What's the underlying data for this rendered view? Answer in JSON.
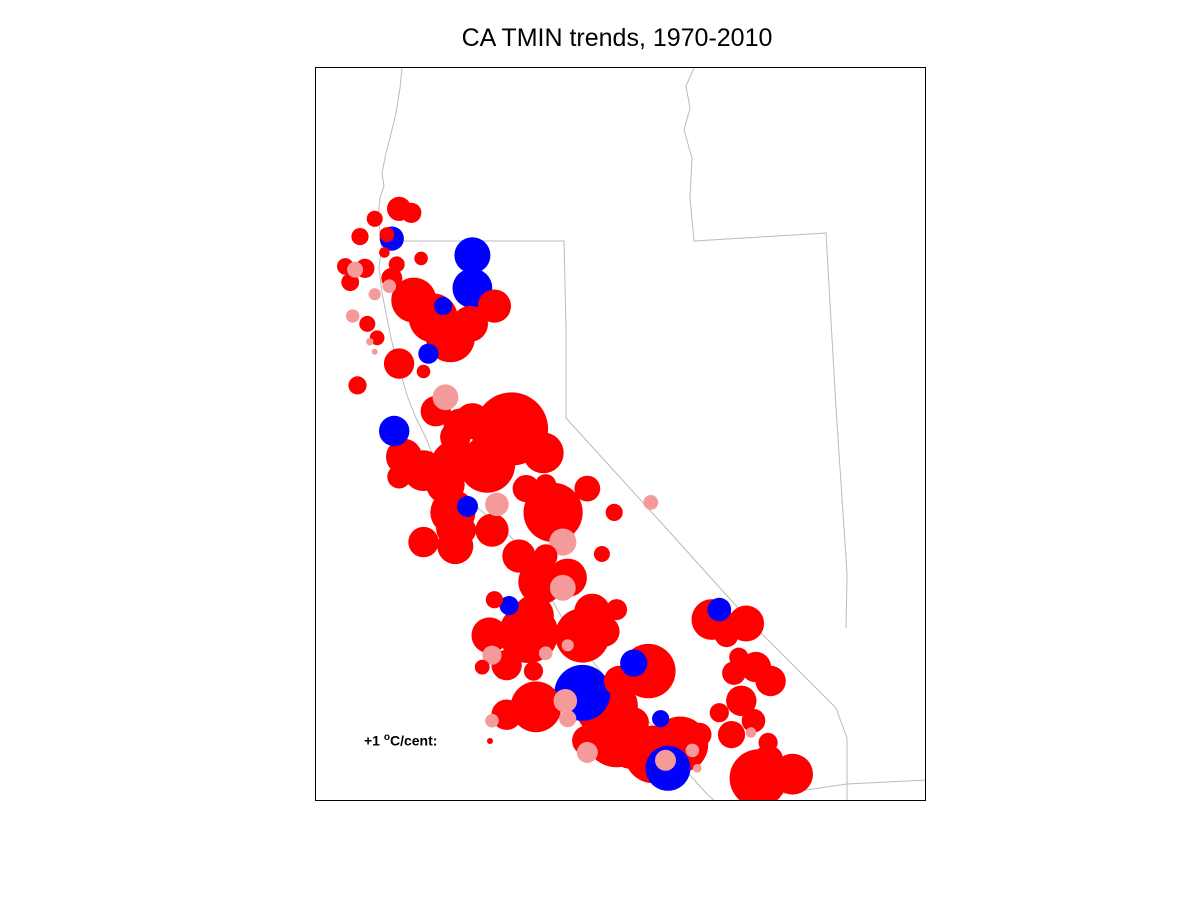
{
  "title": "CA TMIN trends, 1970-2010",
  "legend": {
    "prefix": "+1 ",
    "degree": "o",
    "suffix": "C/cent:",
    "dot_color": "#ff0000"
  },
  "colors": {
    "warming_significant": "#ff0000",
    "warming_insignificant": "#f59a9a",
    "cooling_significant": "#0000ff",
    "cooling_insignificant": "#9a9af5",
    "boundary": "#bbbbbb",
    "frame": "#000000"
  },
  "stations": [
    {
      "lon": -123.3,
      "lat": 41.95,
      "trend": 1.6,
      "sig": true
    },
    {
      "lon": -123.8,
      "lat": 41.7,
      "trend": 0.7,
      "sig": true
    },
    {
      "lon": -124.1,
      "lat": 41.25,
      "trend": 0.8,
      "sig": true
    },
    {
      "lon": -123.55,
      "lat": 41.3,
      "trend": 0.6,
      "sig": true
    },
    {
      "lon": -123.45,
      "lat": 41.2,
      "trend": -1.6,
      "sig": true
    },
    {
      "lon": -123.05,
      "lat": 41.85,
      "trend": 1.1,
      "sig": true
    },
    {
      "lon": -124.4,
      "lat": 40.5,
      "trend": 0.75,
      "sig": true
    },
    {
      "lon": -124.0,
      "lat": 40.45,
      "trend": 1.0,
      "sig": true
    },
    {
      "lon": -124.3,
      "lat": 40.1,
      "trend": 0.85,
      "sig": true
    },
    {
      "lon": -124.2,
      "lat": 40.42,
      "trend": 0.7,
      "sig": false
    },
    {
      "lon": -123.45,
      "lat": 40.2,
      "trend": 1.2,
      "sig": true
    },
    {
      "lon": -123.35,
      "lat": 40.55,
      "trend": 0.7,
      "sig": true
    },
    {
      "lon": -123.6,
      "lat": 40.85,
      "trend": 0.3,
      "sig": true
    },
    {
      "lon": -122.85,
      "lat": 40.7,
      "trend": 0.5,
      "sig": true
    },
    {
      "lon": -121.8,
      "lat": 40.78,
      "trend": -3.5,
      "sig": true
    },
    {
      "lon": -121.8,
      "lat": 39.95,
      "trend": -4.3,
      "sig": true
    },
    {
      "lon": -122.4,
      "lat": 39.5,
      "trend": -0.9,
      "sig": true
    },
    {
      "lon": -121.35,
      "lat": 39.5,
      "trend": 3.0,
      "sig": true
    },
    {
      "lon": -121.85,
      "lat": 39.05,
      "trend": 3.5,
      "sig": true
    },
    {
      "lon": -122.6,
      "lat": 39.2,
      "trend": 6.5,
      "sig": true
    },
    {
      "lon": -123.0,
      "lat": 39.65,
      "trend": 5.5,
      "sig": true
    },
    {
      "lon": -122.25,
      "lat": 38.7,
      "trend": 6.5,
      "sig": true
    },
    {
      "lon": -122.7,
      "lat": 38.3,
      "trend": -1.1,
      "sig": true
    },
    {
      "lon": -122.8,
      "lat": 37.85,
      "trend": 0.5,
      "sig": true
    },
    {
      "lon": -123.5,
      "lat": 40.0,
      "trend": 0.5,
      "sig": false
    },
    {
      "lon": -123.8,
      "lat": 39.8,
      "trend": 0.4,
      "sig": false
    },
    {
      "lon": -124.25,
      "lat": 39.25,
      "trend": 0.5,
      "sig": false
    },
    {
      "lon": -123.95,
      "lat": 39.05,
      "trend": 0.7,
      "sig": true
    },
    {
      "lon": -123.75,
      "lat": 38.7,
      "trend": 0.6,
      "sig": true
    },
    {
      "lon": -123.3,
      "lat": 38.05,
      "trend": 2.5,
      "sig": true
    },
    {
      "lon": -124.15,
      "lat": 37.5,
      "trend": 0.9,
      "sig": true
    },
    {
      "lon": -123.8,
      "lat": 38.35,
      "trend": 0.1,
      "sig": false
    },
    {
      "lon": -123.9,
      "lat": 38.6,
      "trend": 0.15,
      "sig": false
    },
    {
      "lon": -123.4,
      "lat": 36.35,
      "trend": -2.5,
      "sig": true
    },
    {
      "lon": -122.35,
      "lat": 37.2,
      "trend": 1.8,
      "sig": false
    },
    {
      "lon": -122.55,
      "lat": 36.85,
      "trend": 2.5,
      "sig": true
    },
    {
      "lon": -121.0,
      "lat": 36.4,
      "trend": 14.5,
      "sig": true
    },
    {
      "lon": -120.35,
      "lat": 35.8,
      "trend": 4.5,
      "sig": true
    },
    {
      "lon": -121.35,
      "lat": 36.0,
      "trend": 5.5,
      "sig": true
    },
    {
      "lon": -122.05,
      "lat": 36.5,
      "trend": 3.0,
      "sig": true
    },
    {
      "lon": -121.8,
      "lat": 36.6,
      "trend": 3.5,
      "sig": true
    },
    {
      "lon": -122.15,
      "lat": 36.2,
      "trend": 2.5,
      "sig": true
    },
    {
      "lon": -121.5,
      "lat": 35.5,
      "trend": 8.5,
      "sig": true
    },
    {
      "lon": -122.2,
      "lat": 35.55,
      "trend": 5.0,
      "sig": true
    },
    {
      "lon": -122.8,
      "lat": 35.35,
      "trend": 4.5,
      "sig": true
    },
    {
      "lon": -123.2,
      "lat": 35.7,
      "trend": 3.5,
      "sig": true
    },
    {
      "lon": -123.3,
      "lat": 35.2,
      "trend": 1.5,
      "sig": true
    },
    {
      "lon": -122.35,
      "lat": 35.0,
      "trend": 4.0,
      "sig": true
    },
    {
      "lon": -121.9,
      "lat": 34.45,
      "trend": -1.2,
      "sig": true
    },
    {
      "lon": -121.3,
      "lat": 34.5,
      "trend": 1.5,
      "sig": false
    },
    {
      "lon": -122.2,
      "lat": 34.3,
      "trend": 5.5,
      "sig": true
    },
    {
      "lon": -121.4,
      "lat": 33.85,
      "trend": 3.0,
      "sig": true
    },
    {
      "lon": -122.0,
      "lat": 33.85,
      "trend": 2.0,
      "sig": true
    },
    {
      "lon": -122.8,
      "lat": 33.55,
      "trend": 2.5,
      "sig": true
    },
    {
      "lon": -122.15,
      "lat": 33.45,
      "trend": 3.5,
      "sig": true
    },
    {
      "lon": -122.15,
      "lat": 33.9,
      "trend": 4.0,
      "sig": true
    },
    {
      "lon": -120.3,
      "lat": 35.0,
      "trend": 1.2,
      "sig": true
    },
    {
      "lon": -120.7,
      "lat": 34.9,
      "trend": 2.0,
      "sig": true
    },
    {
      "lon": -120.15,
      "lat": 34.3,
      "trend": 9.5,
      "sig": true
    },
    {
      "lon": -119.45,
      "lat": 34.9,
      "trend": 1.8,
      "sig": true
    },
    {
      "lon": -118.9,
      "lat": 34.3,
      "trend": 0.8,
      "sig": true
    },
    {
      "lon": -118.15,
      "lat": 34.55,
      "trend": 0.6,
      "sig": false
    },
    {
      "lon": -119.95,
      "lat": 33.55,
      "trend": 2.0,
      "sig": false
    },
    {
      "lon": -120.85,
      "lat": 33.2,
      "trend": 3.0,
      "sig": true
    },
    {
      "lon": -120.3,
      "lat": 33.2,
      "trend": 1.5,
      "sig": true
    },
    {
      "lon": -119.15,
      "lat": 33.25,
      "trend": 0.7,
      "sig": true
    },
    {
      "lon": -120.4,
      "lat": 32.55,
      "trend": 5.5,
      "sig": true
    },
    {
      "lon": -119.85,
      "lat": 32.65,
      "trend": 4.0,
      "sig": true
    },
    {
      "lon": -119.95,
      "lat": 32.4,
      "trend": 1.8,
      "sig": false
    },
    {
      "lon": -121.35,
      "lat": 32.1,
      "trend": 0.8,
      "sig": true
    },
    {
      "lon": -121.05,
      "lat": 31.95,
      "trend": -1.0,
      "sig": true
    },
    {
      "lon": -120.55,
      "lat": 31.7,
      "trend": 4.5,
      "sig": true
    },
    {
      "lon": -120.65,
      "lat": 31.25,
      "trend": 9.5,
      "sig": true
    },
    {
      "lon": -119.55,
      "lat": 31.2,
      "trend": 8.0,
      "sig": true
    },
    {
      "lon": -119.1,
      "lat": 31.3,
      "trend": 2.5,
      "sig": true
    },
    {
      "lon": -119.35,
      "lat": 31.8,
      "trend": 3.5,
      "sig": true
    },
    {
      "lon": -118.85,
      "lat": 31.85,
      "trend": 1.2,
      "sig": true
    },
    {
      "lon": -121.45,
      "lat": 31.2,
      "trend": 3.5,
      "sig": true
    },
    {
      "lon": -121.4,
      "lat": 30.7,
      "trend": 1.0,
      "sig": false
    },
    {
      "lon": -121.6,
      "lat": 30.4,
      "trend": 0.6,
      "sig": true
    },
    {
      "lon": -121.1,
      "lat": 30.45,
      "trend": 2.5,
      "sig": true
    },
    {
      "lon": -120.55,
      "lat": 30.3,
      "trend": 1.0,
      "sig": true
    },
    {
      "lon": -120.3,
      "lat": 30.75,
      "trend": 0.5,
      "sig": false
    },
    {
      "lon": -119.85,
      "lat": 30.95,
      "trend": 0.4,
      "sig": false
    },
    {
      "lon": -118.5,
      "lat": 30.5,
      "trend": -2.0,
      "sig": true
    },
    {
      "lon": -118.2,
      "lat": 30.3,
      "trend": 8.0,
      "sig": true
    },
    {
      "lon": -118.8,
      "lat": 30.05,
      "trend": 2.5,
      "sig": true
    },
    {
      "lon": -119.55,
      "lat": 29.75,
      "trend": -8.5,
      "sig": true
    },
    {
      "lon": -119.9,
      "lat": 29.55,
      "trend": 1.5,
      "sig": false
    },
    {
      "lon": -120.5,
      "lat": 29.4,
      "trend": 7.0,
      "sig": true
    },
    {
      "lon": -121.1,
      "lat": 29.2,
      "trend": 2.5,
      "sig": true
    },
    {
      "lon": -121.4,
      "lat": 29.05,
      "trend": 0.5,
      "sig": false
    },
    {
      "lon": -119.85,
      "lat": 29.1,
      "trend": 0.8,
      "sig": false
    },
    {
      "lon": -119.05,
      "lat": 29.4,
      "trend": 10.5,
      "sig": true
    },
    {
      "lon": -118.5,
      "lat": 29.0,
      "trend": 2.5,
      "sig": true
    },
    {
      "lon": -117.95,
      "lat": 29.1,
      "trend": -0.8,
      "sig": true
    },
    {
      "lon": -118.85,
      "lat": 28.7,
      "trend": 11.5,
      "sig": true
    },
    {
      "lon": -118.55,
      "lat": 28.4,
      "trend": 5.5,
      "sig": true
    },
    {
      "lon": -119.45,
      "lat": 28.55,
      "trend": 2.5,
      "sig": true
    },
    {
      "lon": -119.45,
      "lat": 28.25,
      "trend": 1.2,
      "sig": false
    },
    {
      "lon": -118.1,
      "lat": 28.2,
      "trend": 9.0,
      "sig": true
    },
    {
      "lon": -117.55,
      "lat": 28.45,
      "trend": 8.5,
      "sig": true
    },
    {
      "lon": -117.15,
      "lat": 28.7,
      "trend": 1.5,
      "sig": true
    },
    {
      "lon": -117.3,
      "lat": 28.3,
      "trend": 0.5,
      "sig": false
    },
    {
      "lon": -117.8,
      "lat": 27.85,
      "trend": -5.5,
      "sig": true
    },
    {
      "lon": -117.85,
      "lat": 28.05,
      "trend": 1.2,
      "sig": false
    },
    {
      "lon": -117.2,
      "lat": 27.85,
      "trend": 0.2,
      "sig": false
    },
    {
      "lon": -116.9,
      "lat": 31.6,
      "trend": 4.5,
      "sig": true
    },
    {
      "lon": -116.75,
      "lat": 31.85,
      "trend": -1.5,
      "sig": true
    },
    {
      "lon": -116.2,
      "lat": 31.5,
      "trend": 3.5,
      "sig": true
    },
    {
      "lon": -116.6,
      "lat": 31.2,
      "trend": 1.5,
      "sig": true
    },
    {
      "lon": -116.35,
      "lat": 30.65,
      "trend": 1.0,
      "sig": true
    },
    {
      "lon": -116.45,
      "lat": 30.25,
      "trend": 1.5,
      "sig": true
    },
    {
      "lon": -116.0,
      "lat": 30.4,
      "trend": 2.5,
      "sig": true
    },
    {
      "lon": -115.7,
      "lat": 30.05,
      "trend": 2.5,
      "sig": true
    },
    {
      "lon": -116.3,
      "lat": 29.55,
      "trend": 2.5,
      "sig": true
    },
    {
      "lon": -116.75,
      "lat": 29.25,
      "trend": 1.0,
      "sig": true
    },
    {
      "lon": -116.05,
      "lat": 29.05,
      "trend": 1.5,
      "sig": true
    },
    {
      "lon": -116.5,
      "lat": 28.7,
      "trend": 2.0,
      "sig": true
    },
    {
      "lon": -116.1,
      "lat": 28.75,
      "trend": 0.3,
      "sig": false
    },
    {
      "lon": -115.75,
      "lat": 28.5,
      "trend": 1.0,
      "sig": true
    },
    {
      "lon": -115.75,
      "lat": 28.05,
      "trend": 2.5,
      "sig": true
    },
    {
      "lon": -115.25,
      "lat": 27.7,
      "trend": 4.5,
      "sig": true
    },
    {
      "lon": -115.95,
      "lat": 27.6,
      "trend": 9.0,
      "sig": true
    }
  ]
}
